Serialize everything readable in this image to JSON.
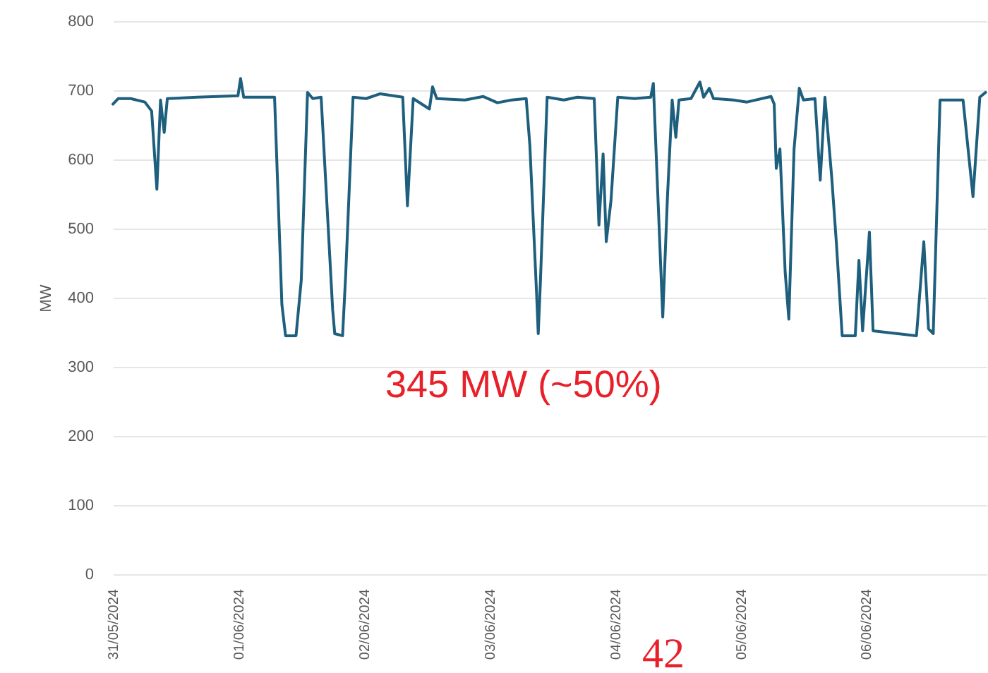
{
  "chart_data": {
    "type": "line",
    "ylabel": "MW",
    "color": "#1e5f7e",
    "line_style": "solid",
    "grid": "y",
    "x": [
      "2024-05-31T00:00",
      "2024-05-31T01:00",
      "2024-05-31T03:24",
      "2024-05-31T06:06",
      "2024-05-31T07:24",
      "2024-05-31T08:24",
      "2024-05-31T09:06",
      "2024-05-31T09:48",
      "2024-05-31T10:24",
      "2024-05-31T16:06",
      "2024-05-31T23:54",
      "2024-06-01T00:24",
      "2024-06-01T01:00",
      "2024-06-01T06:54",
      "2024-06-01T08:18",
      "2024-06-01T09:00",
      "2024-06-01T11:00",
      "2024-06-01T12:00",
      "2024-06-01T13:12",
      "2024-06-01T14:12",
      "2024-06-01T15:48",
      "2024-06-01T18:00",
      "2024-06-01T18:24",
      "2024-06-01T19:54",
      "2024-06-01T20:30",
      "2024-06-01T21:54",
      "2024-06-02T00:24",
      "2024-06-02T03:06",
      "2024-06-02T07:24",
      "2024-06-02T08:18",
      "2024-06-02T09:24",
      "2024-06-02T12:30",
      "2024-06-02T13:06",
      "2024-06-02T13:54",
      "2024-06-02T19:18",
      "2024-06-02T22:48",
      "2024-06-03T01:30",
      "2024-06-03T04:12",
      "2024-06-03T07:00",
      "2024-06-03T07:42",
      "2024-06-03T09:00",
      "2024-06-03T09:18",
      "2024-06-03T09:42",
      "2024-06-03T11:00",
      "2024-06-03T14:12",
      "2024-06-03T16:48",
      "2024-06-03T20:00",
      "2024-06-03T20:54",
      "2024-06-03T21:42",
      "2024-06-03T22:18",
      "2024-06-03T23:12",
      "2024-06-04T00:30",
      "2024-06-04T03:42",
      "2024-06-04T06:48",
      "2024-06-04T07:18",
      "2024-06-04T09:06",
      "2024-06-04T10:00",
      "2024-06-04T10:54",
      "2024-06-04T11:36",
      "2024-06-04T12:12",
      "2024-06-04T14:30",
      "2024-06-04T16:12",
      "2024-06-04T16:54",
      "2024-06-04T18:00",
      "2024-06-04T18:48",
      "2024-06-04T22:36",
      "2024-06-05T01:12",
      "2024-06-05T05:48",
      "2024-06-05T06:24",
      "2024-06-05T06:48",
      "2024-06-05T07:30",
      "2024-06-05T08:30",
      "2024-06-05T09:12",
      "2024-06-05T10:12",
      "2024-06-05T11:12",
      "2024-06-05T12:00",
      "2024-06-05T14:12",
      "2024-06-05T15:12",
      "2024-06-05T16:06",
      "2024-06-05T17:24",
      "2024-06-05T18:18",
      "2024-06-05T19:24",
      "2024-06-05T21:54",
      "2024-06-05T22:36",
      "2024-06-05T23:18",
      "2024-06-06T00:36",
      "2024-06-06T01:18",
      "2024-06-06T09:36",
      "2024-06-06T11:00",
      "2024-06-06T11:54",
      "2024-06-06T12:48",
      "2024-06-06T14:06",
      "2024-06-06T18:30",
      "2024-06-06T20:24",
      "2024-06-06T21:42",
      "2024-06-06T22:48"
    ],
    "values": [
      680,
      688,
      688,
      683,
      670,
      557,
      686,
      639,
      688,
      690,
      692,
      717,
      690,
      690,
      390,
      345,
      345,
      425,
      697,
      688,
      690,
      383,
      348,
      345,
      434,
      690,
      688,
      695,
      690,
      533,
      688,
      673,
      705,
      688,
      686,
      691,
      682,
      686,
      688,
      620,
      403,
      348,
      420,
      690,
      686,
      690,
      688,
      505,
      608,
      481,
      540,
      690,
      688,
      690,
      710,
      372,
      546,
      686,
      632,
      686,
      688,
      712,
      690,
      703,
      688,
      686,
      683,
      691,
      680,
      587,
      615,
      437,
      369,
      615,
      703,
      686,
      688,
      570,
      690,
      574,
      478,
      345,
      345,
      454,
      352,
      495,
      352,
      345,
      481,
      355,
      348,
      686,
      686,
      546,
      690,
      697
    ],
    "xlim": [
      "2024-05-31T00:00",
      "2024-06-06T23:00"
    ],
    "xticks": [
      {
        "value": "2024-05-31",
        "label": "31/05/2024"
      },
      {
        "value": "2024-06-01",
        "label": "01/06/2024"
      },
      {
        "value": "2024-06-02",
        "label": "02/06/2024"
      },
      {
        "value": "2024-06-03",
        "label": "03/06/2024"
      },
      {
        "value": "2024-06-04",
        "label": "04/06/2024"
      },
      {
        "value": "2024-06-05",
        "label": "05/06/2024"
      },
      {
        "value": "2024-06-06",
        "label": "06/06/2024"
      }
    ],
    "ylim": [
      0,
      800
    ],
    "yticks": [
      0,
      100,
      200,
      300,
      400,
      500,
      600,
      700,
      800
    ],
    "annotations": [
      "345 MW (~50%)",
      "42"
    ]
  }
}
